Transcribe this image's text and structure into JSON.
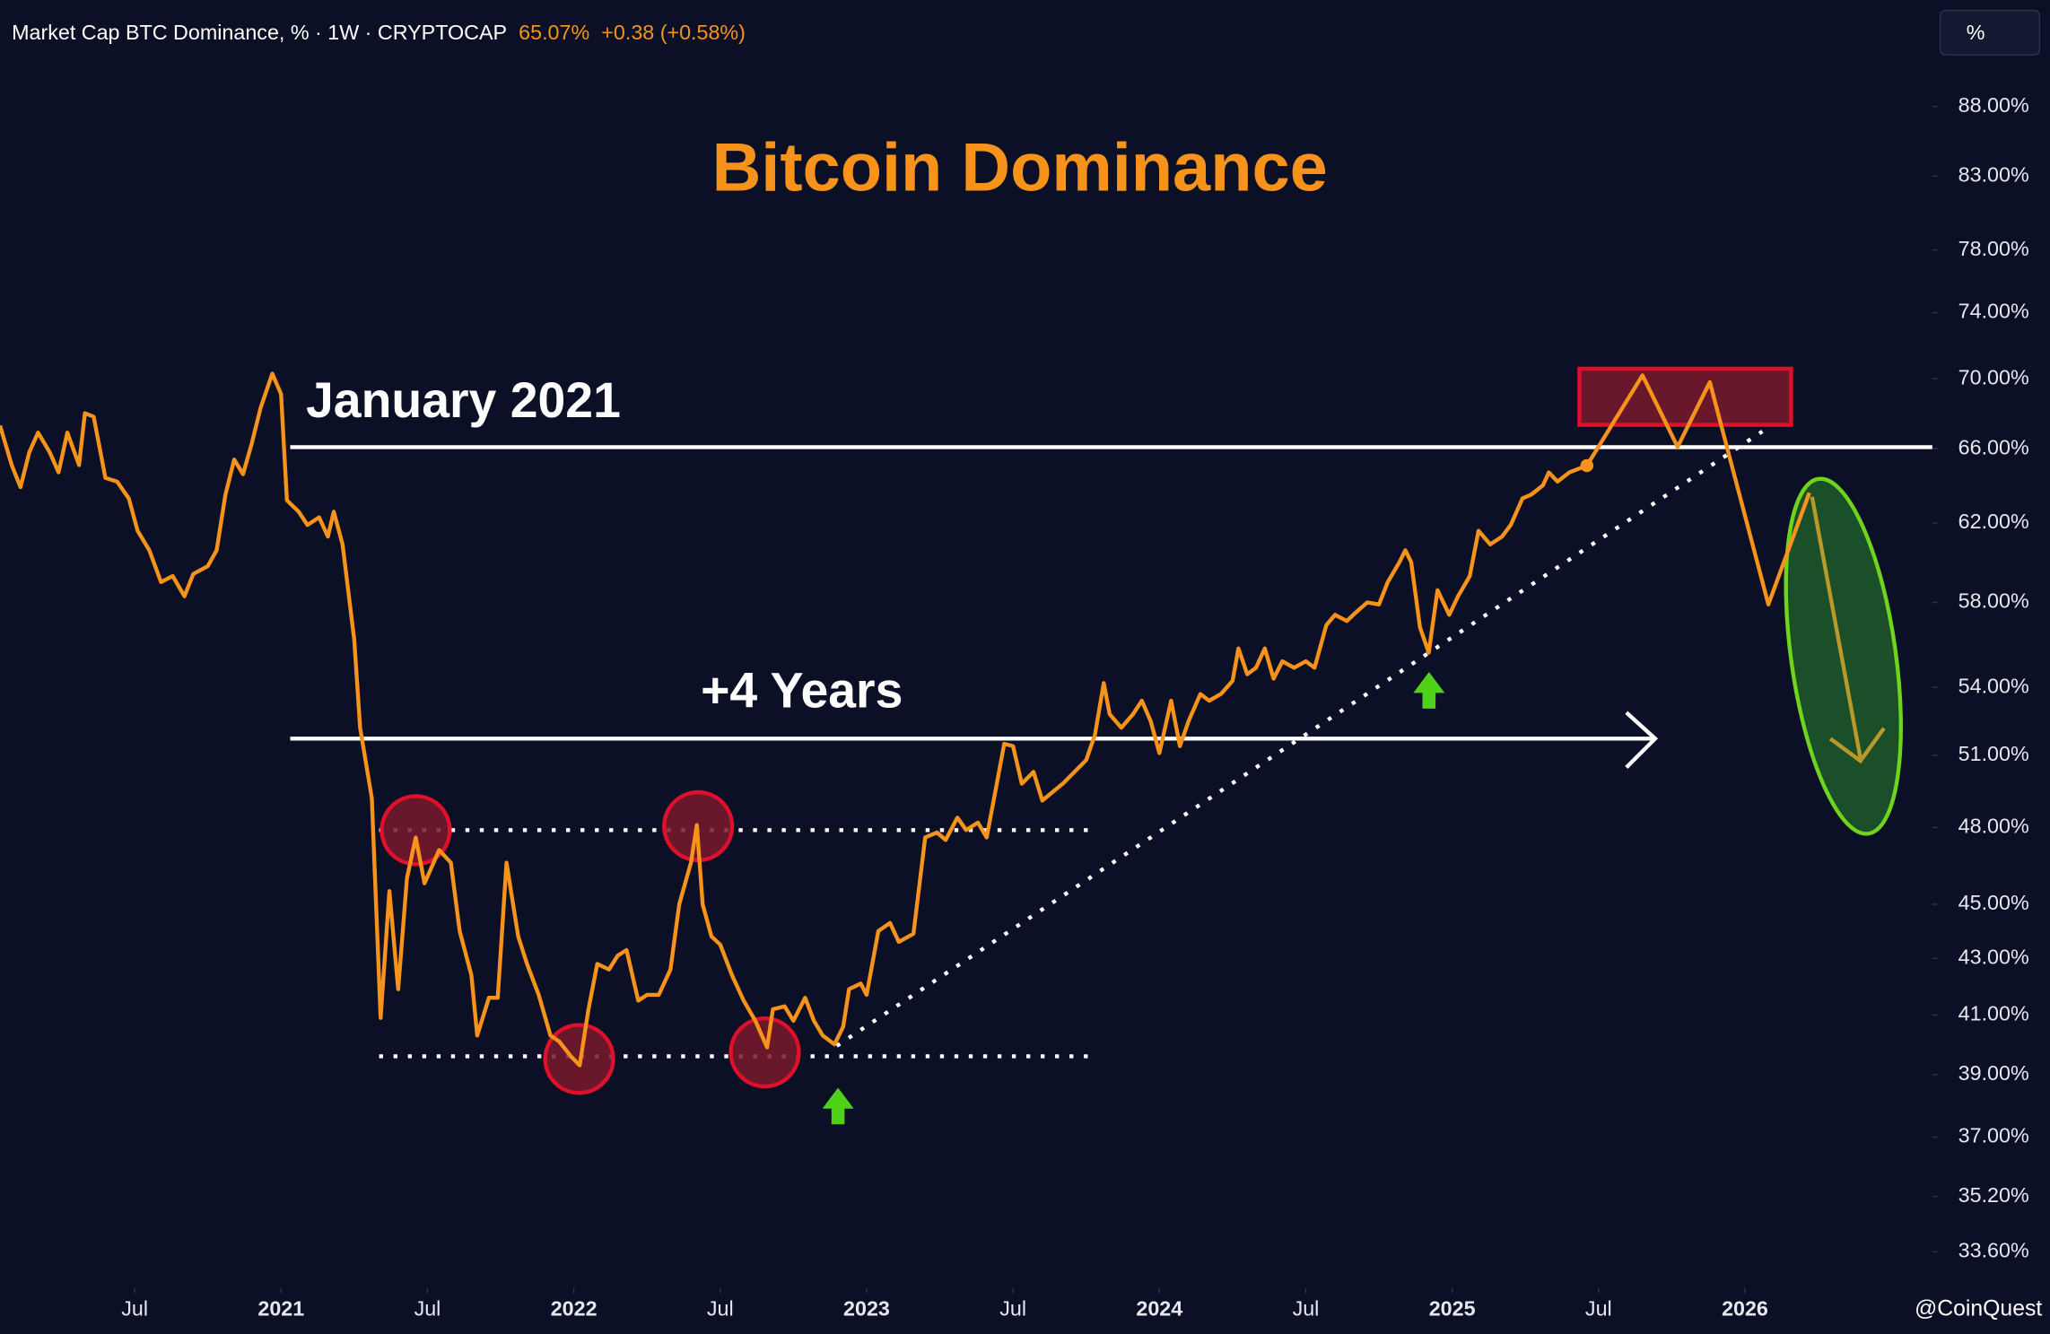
{
  "chart_data": {
    "type": "line",
    "header": {
      "symbol": "Market Cap BTC Dominance, % · 1W · CRYPTOCAP",
      "last": "65.07%",
      "change": "+0.38 (+0.58%)"
    },
    "scale_button": "%",
    "title": "Bitcoin Dominance",
    "annotations": [
      "January 2021",
      "+4 Years"
    ],
    "watermark": "@CoinQuest",
    "ylog": true,
    "grid": false,
    "xlim": [
      2020.04,
      2026.64
    ],
    "xticks": [
      {
        "value": 2020.5,
        "label": "Jul"
      },
      2021,
      {
        "value": 2021.5,
        "label": "Jul"
      },
      2022,
      {
        "value": 2022.5,
        "label": "Jul"
      },
      2023,
      {
        "value": 2023.5,
        "label": "Jul"
      },
      2024,
      {
        "value": 2024.5,
        "label": "Jul"
      },
      2025,
      {
        "value": 2025.5,
        "label": "Jul"
      },
      2026
    ],
    "ylim": [
      32.6,
      91.6
    ],
    "yticks": [
      {
        "value": 88,
        "label": "88.00%"
      },
      {
        "value": 83,
        "label": "83.00%"
      },
      {
        "value": 78,
        "label": "78.00%"
      },
      {
        "value": 74,
        "label": "74.00%"
      },
      {
        "value": 70,
        "label": "70.00%"
      },
      {
        "value": 66,
        "label": "66.00%"
      },
      {
        "value": 62,
        "label": "62.00%"
      },
      {
        "value": 58,
        "label": "58.00%"
      },
      {
        "value": 54,
        "label": "54.00%"
      },
      {
        "value": 51,
        "label": "51.00%"
      },
      {
        "value": 48,
        "label": "48.00%"
      },
      {
        "value": 45,
        "label": "45.00%"
      },
      {
        "value": 43,
        "label": "43.00%"
      },
      {
        "value": 41,
        "label": "41.00%"
      },
      {
        "value": 39,
        "label": "39.00%"
      },
      {
        "value": 37,
        "label": "37.00%"
      },
      {
        "value": 35.2,
        "label": "35.20%"
      },
      {
        "value": 33.6,
        "label": "33.60%"
      }
    ],
    "series": [
      {
        "color": "#f7931a",
        "x": [
          2020.04,
          2020.08,
          2020.11,
          2020.14,
          2020.17,
          2020.21,
          2020.24,
          2020.27,
          2020.31,
          2020.33,
          2020.36,
          2020.4,
          2020.44,
          2020.48,
          2020.51,
          2020.55,
          2020.59,
          2020.63,
          2020.67,
          2020.7,
          2020.75,
          2020.78,
          2020.81,
          2020.84,
          2020.87,
          2020.9,
          2020.93,
          2020.97,
          2021.0,
          2021.02,
          2021.06,
          2021.09,
          2021.13,
          2021.16,
          2021.18,
          2021.21,
          2021.25,
          2021.27,
          2021.31,
          2021.34,
          2021.37,
          2021.4,
          2021.43,
          2021.46,
          2021.49,
          2021.54,
          2021.58,
          2021.61,
          2021.65,
          2021.67,
          2021.71,
          2021.74,
          2021.77,
          2021.81,
          2021.84,
          2021.88,
          2021.92,
          2021.95,
          2021.99,
          2022.02,
          2022.05,
          2022.08,
          2022.12,
          2022.15,
          2022.18,
          2022.22,
          2022.25,
          2022.29,
          2022.33,
          2022.36,
          2022.4,
          2022.42,
          2022.44,
          2022.47,
          2022.5,
          2022.54,
          2022.58,
          2022.62,
          2022.66,
          2022.68,
          2022.72,
          2022.75,
          2022.79,
          2022.82,
          2022.85,
          2022.89,
          2022.92,
          2022.94,
          2022.98,
          2023.0,
          2023.04,
          2023.08,
          2023.11,
          2023.16,
          2023.2,
          2023.24,
          2023.27,
          2023.31,
          2023.34,
          2023.38,
          2023.41,
          2023.44,
          2023.47,
          2023.5,
          2023.53,
          2023.57,
          2023.6,
          2023.64,
          2023.67,
          2023.71,
          2023.75,
          2023.78,
          2023.81,
          2023.83,
          2023.87,
          2023.91,
          2023.94,
          2023.97,
          2024.0,
          2024.04,
          2024.07,
          2024.1,
          2024.14,
          2024.17,
          2024.21,
          2024.25,
          2024.27,
          2024.3,
          2024.33,
          2024.36,
          2024.39,
          2024.42,
          2024.46,
          2024.5,
          2024.53,
          2024.57,
          2024.6,
          2024.64,
          2024.67,
          2024.71,
          2024.75,
          2024.78,
          2024.82,
          2024.84,
          2024.86,
          2024.89,
          2024.92,
          2024.95,
          2024.99,
          2025.02,
          2025.06,
          2025.09,
          2025.13,
          2025.17,
          2025.2,
          2025.24,
          2025.27,
          2025.31,
          2025.33,
          2025.36,
          2025.4,
          2025.46
        ],
        "values": [
          67.3,
          65.1,
          63.9,
          65.8,
          66.9,
          65.8,
          64.7,
          66.9,
          65.1,
          68.0,
          67.8,
          64.4,
          64.2,
          63.3,
          61.6,
          60.6,
          59.0,
          59.3,
          58.3,
          59.4,
          59.8,
          60.6,
          63.5,
          65.4,
          64.6,
          66.3,
          68.3,
          70.3,
          69.1,
          63.2,
          62.6,
          61.9,
          62.3,
          61.3,
          62.6,
          60.9,
          56.2,
          52.2,
          49.2,
          40.9,
          45.5,
          41.9,
          46.0,
          47.6,
          45.8,
          47.1,
          46.6,
          44.0,
          42.4,
          40.3,
          41.6,
          41.6,
          46.6,
          43.8,
          42.8,
          41.7,
          40.3,
          40.1,
          39.6,
          39.3,
          41.2,
          42.8,
          42.6,
          43.1,
          43.3,
          41.5,
          41.7,
          41.7,
          42.6,
          45.0,
          46.6,
          48.1,
          45.0,
          43.8,
          43.5,
          42.4,
          41.5,
          40.8,
          39.9,
          41.2,
          41.3,
          40.8,
          41.6,
          40.8,
          40.3,
          40.0,
          40.6,
          41.9,
          42.1,
          41.7,
          44.0,
          44.3,
          43.6,
          43.9,
          47.6,
          47.8,
          47.5,
          48.4,
          47.9,
          48.2,
          47.6,
          49.5,
          51.5,
          51.4,
          49.8,
          50.3,
          49.1,
          49.5,
          49.8,
          50.3,
          50.8,
          51.9,
          54.2,
          52.8,
          52.2,
          52.8,
          53.4,
          52.5,
          51.1,
          53.4,
          51.4,
          52.5,
          53.7,
          53.4,
          53.7,
          54.3,
          55.8,
          54.6,
          54.9,
          55.8,
          54.4,
          55.2,
          54.9,
          55.2,
          54.9,
          56.9,
          57.4,
          57.1,
          57.5,
          58.0,
          57.9,
          59.0,
          60.0,
          60.6,
          60.0,
          56.8,
          55.6,
          58.6,
          57.4,
          58.3,
          59.3,
          61.6,
          60.9,
          61.3,
          61.9,
          63.3,
          63.5,
          64.0,
          64.7,
          64.2,
          64.7,
          65.07
        ]
      },
      {
        "color": "#f7931a",
        "x": [
          2025.46,
          2025.65,
          2025.77,
          2025.88,
          2026.08,
          2026.22
        ],
        "values": [
          65.07,
          70.2,
          66.1,
          69.8,
          57.9,
          63.6
        ]
      }
    ]
  }
}
